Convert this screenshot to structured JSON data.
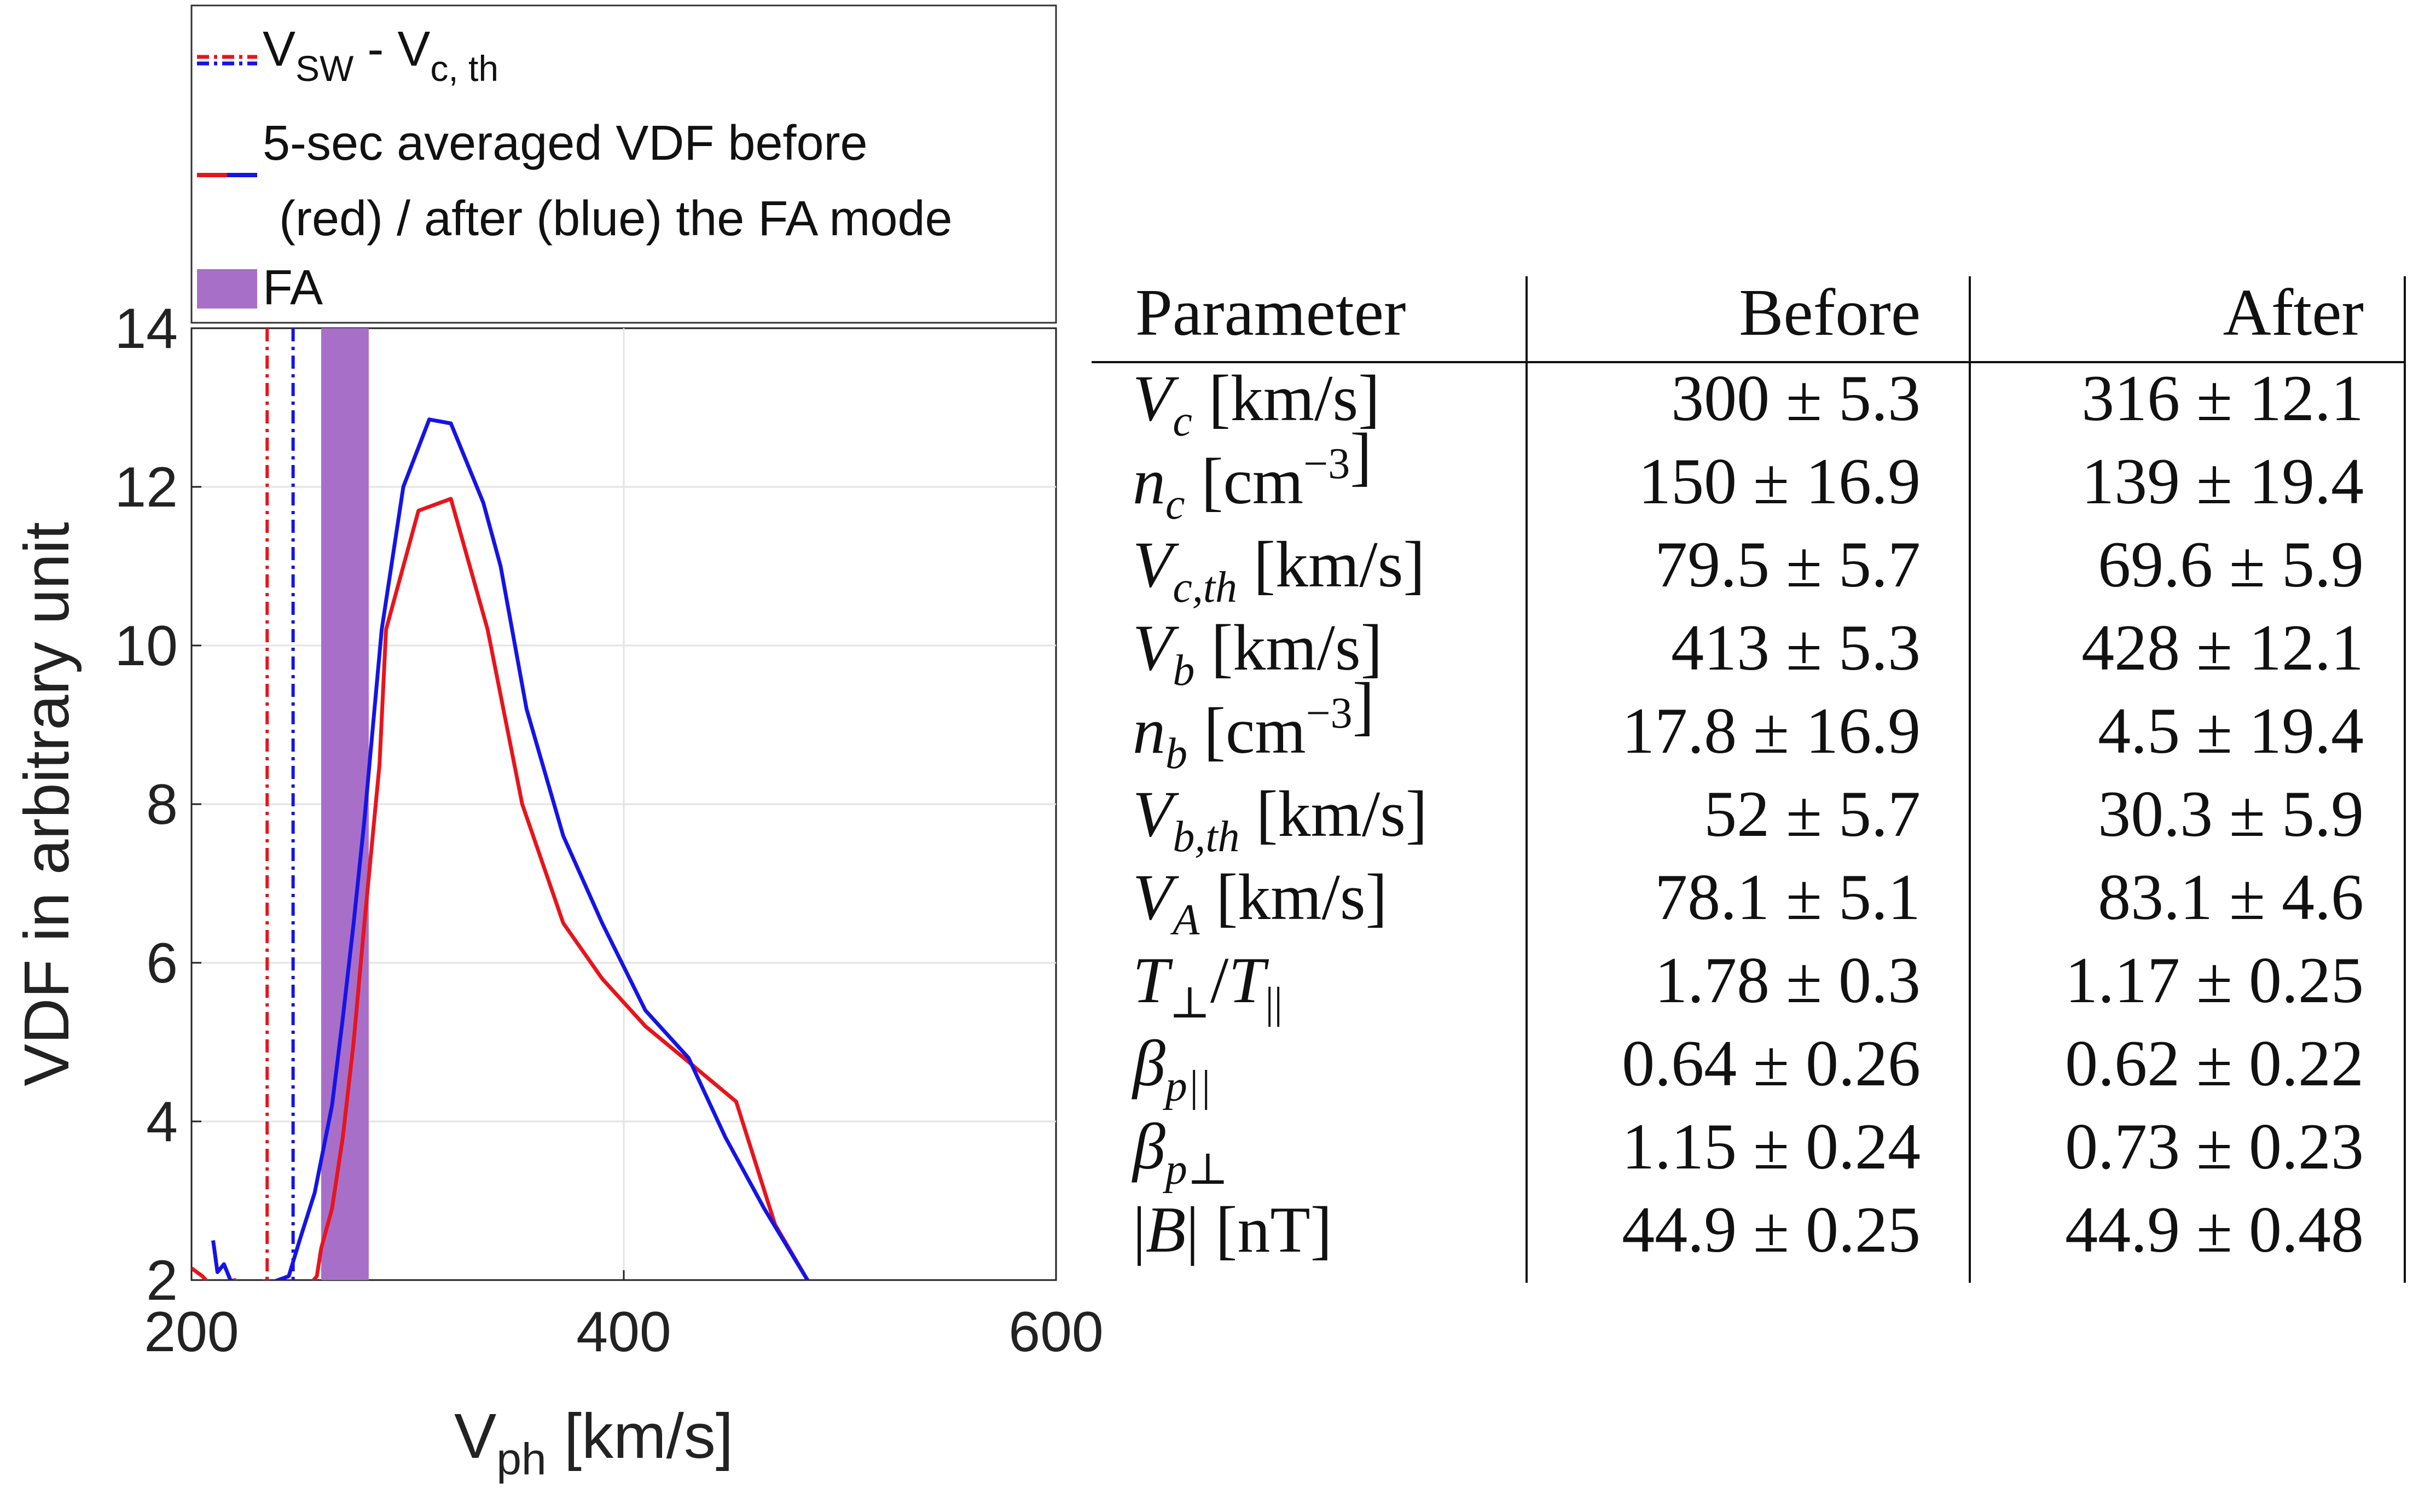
{
  "chart_data": {
    "type": "line",
    "xlabel": "V",
    "xlabel_sub": "ph",
    "xlabel_unit": " [km/s]",
    "ylabel": "VDF in arbitrary unit",
    "xlim": [
      200,
      600
    ],
    "ylim": [
      2,
      14
    ],
    "xticks": [
      200,
      400,
      600
    ],
    "yticks": [
      2,
      4,
      6,
      8,
      10,
      12,
      14
    ],
    "grid": true,
    "colors": {
      "before": "#e8141c",
      "after": "#1414e6",
      "fa": "#a86fc9"
    },
    "series": [
      {
        "name": "Before",
        "x": [
          200,
          205,
          210,
          215,
          220,
          225,
          230,
          235,
          240,
          245,
          250,
          255,
          258,
          260,
          265,
          270,
          275,
          280,
          287,
          290,
          305,
          320,
          337,
          353,
          372,
          390,
          410,
          430,
          452,
          470,
          485
        ],
        "y": [
          2.15,
          2.05,
          1.9,
          1.95,
          2.0,
          1.9,
          1.95,
          2.0,
          1.9,
          1.9,
          1.9,
          1.95,
          2.05,
          2.4,
          2.9,
          3.8,
          5.0,
          6.5,
          8.5,
          10.2,
          11.7,
          11.85,
          10.2,
          8.0,
          6.5,
          5.8,
          5.2,
          4.75,
          4.25,
          2.7,
          2.0
        ]
      },
      {
        "name": "After",
        "x": [
          210,
          212,
          215,
          218,
          222,
          230,
          245,
          250,
          257,
          265,
          270,
          275,
          280,
          288,
          298,
          310,
          320,
          335,
          343,
          355,
          372,
          390,
          410,
          430,
          447,
          465,
          485
        ],
        "y": [
          2.5,
          2.1,
          2.2,
          2.0,
          1.95,
          1.9,
          2.05,
          2.5,
          3.1,
          4.2,
          5.3,
          6.5,
          7.8,
          10.2,
          12.0,
          12.85,
          12.8,
          11.8,
          11.0,
          9.2,
          7.6,
          6.5,
          5.4,
          4.8,
          3.8,
          2.9,
          2.0
        ]
      }
    ],
    "vlines": [
      {
        "name": "V_SW - V_c,th before",
        "x": 235,
        "color": "red"
      },
      {
        "name": "V_SW - V_c,th after",
        "x": 247,
        "color": "blue"
      }
    ],
    "fa_band": [
      260,
      282
    ],
    "legend": {
      "position": "top-left",
      "entries": [
        {
          "label": "V",
          "sub1": "SW",
          "mid": " - V",
          "sub2": "c, th"
        },
        {
          "line1": "5-sec averaged VDF before",
          "line2": "(red) / after (blue) the FA mode"
        },
        {
          "label": "FA"
        }
      ]
    }
  },
  "table": {
    "headers": [
      "Parameter",
      "Before",
      "After"
    ],
    "rows": [
      {
        "sym": "V",
        "sub": "c",
        "sup": "",
        "unit": " [km/s]",
        "before": "300 ± 5.3",
        "after": "316 ± 12.1"
      },
      {
        "sym": "n",
        "sub": "c",
        "sup": "",
        "unit": " [cm",
        "unit_sup": "−3",
        "unit_end": "]",
        "before": "150 ± 16.9",
        "after": "139 ± 19.4"
      },
      {
        "sym": "V",
        "sub": "c,th",
        "sup": "",
        "unit": " [km/s]",
        "before": "79.5 ± 5.7",
        "after": "69.6 ± 5.9"
      },
      {
        "sym": "V",
        "sub": "b",
        "sup": "",
        "unit": " [km/s]",
        "before": "413 ± 5.3",
        "after": "428 ± 12.1"
      },
      {
        "sym": "n",
        "sub": "b",
        "sup": "",
        "unit": " [cm",
        "unit_sup": "−3",
        "unit_end": "]",
        "before": "17.8 ± 16.9",
        "after": "4.5 ± 19.4"
      },
      {
        "sym": "V",
        "sub": "b,th",
        "sup": "",
        "unit": " [km/s]",
        "before": "52 ± 5.7",
        "after": "30.3 ± 5.9"
      },
      {
        "sym": "V",
        "sub": "A",
        "sup": "",
        "unit": " [km/s]",
        "before": "78.1 ± 5.1",
        "after": "83.1 ± 4.6"
      },
      {
        "sym": "T",
        "sub": "⊥",
        "mid": "/",
        "sym2": "T",
        "sub2": "||",
        "unit": "",
        "before": "1.78 ± 0.3",
        "after": "1.17 ± 0.25"
      },
      {
        "sym": "β",
        "sub": "p||",
        "sup": "",
        "unit": "",
        "before": "0.64 ± 0.26",
        "after": "0.62 ± 0.22"
      },
      {
        "sym": "β",
        "sub": "p⊥",
        "sup": "",
        "unit": "",
        "before": "1.15 ± 0.24",
        "after": "0.73 ± 0.23"
      },
      {
        "pre": "|",
        "sym": "B",
        "post": "|",
        "sub": "",
        "unit": " [nT]",
        "before": "44.9 ± 0.25",
        "after": "44.9 ± 0.48"
      }
    ]
  }
}
